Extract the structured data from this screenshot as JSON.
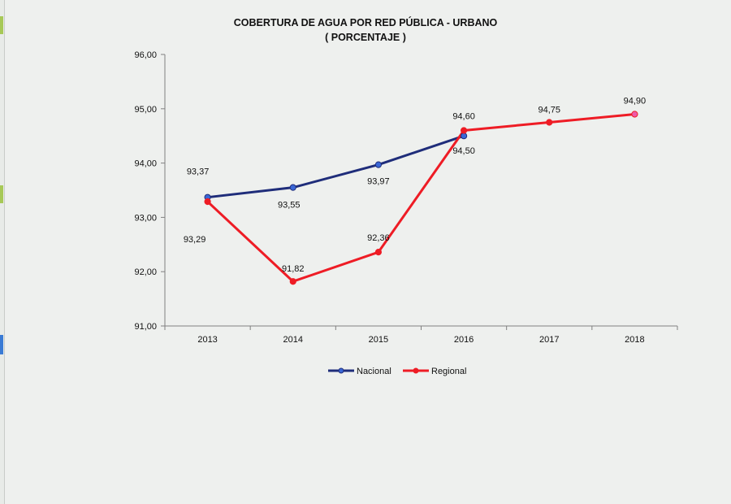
{
  "chart_data": {
    "type": "line",
    "title": "COBERTURA DE AGUA POR RED PÚBLICA - URBANO",
    "subtitle": "( PORCENTAJE )",
    "categories": [
      "2013",
      "2014",
      "2015",
      "2016",
      "2017",
      "2018"
    ],
    "ylim": [
      91,
      96
    ],
    "yticks": [
      "91,00",
      "92,00",
      "93,00",
      "94,00",
      "95,00",
      "96,00"
    ],
    "grid": false,
    "legend_position": "bottom",
    "series": [
      {
        "name": "Nacional",
        "color": "#1f2d7a",
        "marker_color": "#3a67d6",
        "values": [
          93.37,
          93.55,
          93.97,
          94.5,
          null,
          null
        ],
        "labels": [
          "93,37",
          "93,55",
          "93,97",
          "94,50",
          "",
          ""
        ]
      },
      {
        "name": "Regional",
        "color": "#ee1c25",
        "marker_color": "#ee1c25",
        "values": [
          93.29,
          91.82,
          92.36,
          94.6,
          94.75,
          94.9
        ],
        "labels": [
          "93,29",
          "91,82",
          "92,36",
          "94,60",
          "94,75",
          "94,90"
        ]
      }
    ]
  }
}
